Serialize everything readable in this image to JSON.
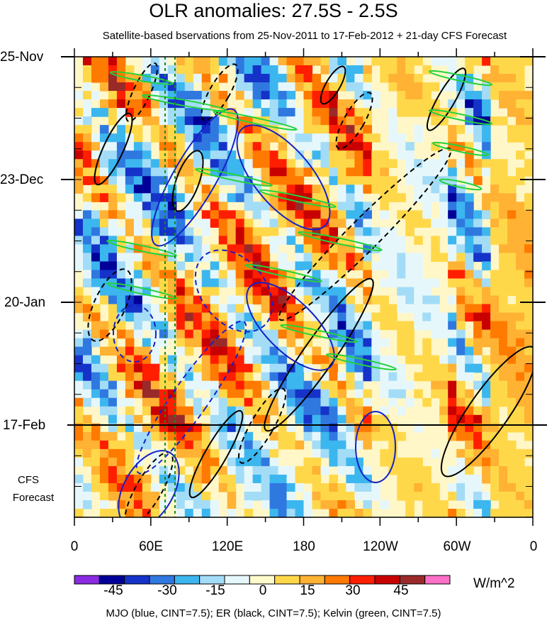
{
  "title": "OLR anomalies: 27.5S - 2.5S",
  "subtitle": "Satellite-based bservations from 25-Nov-2011 to 17-Feb-2012 + 21-day CFS Forecast",
  "y_labels": [
    "25-Nov",
    "23-Dec",
    "20-Jan",
    "17-Feb"
  ],
  "forecast_label_line1": "CFS",
  "forecast_label_line2": "Forecast",
  "x_labels": [
    "0",
    "60E",
    "120E",
    "180",
    "120W",
    "60W",
    "0"
  ],
  "colorbar": {
    "units": "W/m^2",
    "tick_labels": [
      "-45",
      "-30",
      "-15",
      "0",
      "15",
      "30",
      "45"
    ],
    "colors": [
      "#8a2be2",
      "#000099",
      "#1533c9",
      "#2f78e0",
      "#3cb6ee",
      "#a3dcf7",
      "#e6f7fb",
      "#fffbcc",
      "#ffd84a",
      "#ffb233",
      "#ff7a00",
      "#ff1e00",
      "#c80000",
      "#9a2a2a",
      "#ff70c8"
    ]
  },
  "footnote": "MJO (blue, CINT=7.5); ER (black, CINT=7.5); Kelvin (green, CINT=7.5)",
  "chart_data": {
    "type": "heatmap",
    "title": "OLR anomalies: 27.5S - 2.5S",
    "subtitle": "Satellite-based bservations from 25-Nov-2011 to 17-Feb-2012 + 21-day CFS Forecast",
    "x_ticks": [
      "0",
      "60E",
      "120E",
      "180",
      "120W",
      "60W",
      "0"
    ],
    "x_range_deg": [
      0,
      360
    ],
    "y_ticks": [
      "25-Nov",
      "23-Dec",
      "20-Jan",
      "17-Feb"
    ],
    "y_range": [
      "2011-11-25",
      "2012-03-09"
    ],
    "forecast_start": "2012-02-17",
    "colorbar_range": [
      -52.5,
      52.5
    ],
    "colorbar_interval": 7.5,
    "units": "W/m^2",
    "overlays": [
      {
        "name": "MJO",
        "color": "blue",
        "cint": 7.5
      },
      {
        "name": "ER",
        "color": "black",
        "cint": 7.5
      },
      {
        "name": "Kelvin",
        "color": "green",
        "cint": 7.5
      }
    ]
  }
}
